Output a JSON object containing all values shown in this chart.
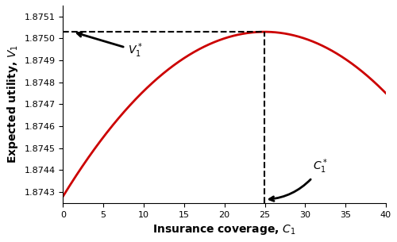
{
  "x_min": 0,
  "x_max": 40,
  "y_min": 1.87425,
  "y_max": 1.87515,
  "optimal_c1": 24.992,
  "optimal_v1": 1.87503,
  "xlabel": "Insurance coverage, $C_1$",
  "ylabel": "Expected utility, $V_1$",
  "line_color": "#cc0000",
  "line_width": 2.0,
  "dashed_color": "black",
  "yticks": [
    1.8743,
    1.8744,
    1.8745,
    1.8746,
    1.8747,
    1.8748,
    1.8749,
    1.875,
    1.8751
  ],
  "xticks": [
    0,
    5,
    10,
    15,
    20,
    25,
    30,
    35,
    40
  ],
  "v1_label": "$V_1^*$",
  "c1_label": "$C_1^*$",
  "background_color": "#ffffff",
  "v0_at_0": 1.87428,
  "v_at_40": 1.87475
}
